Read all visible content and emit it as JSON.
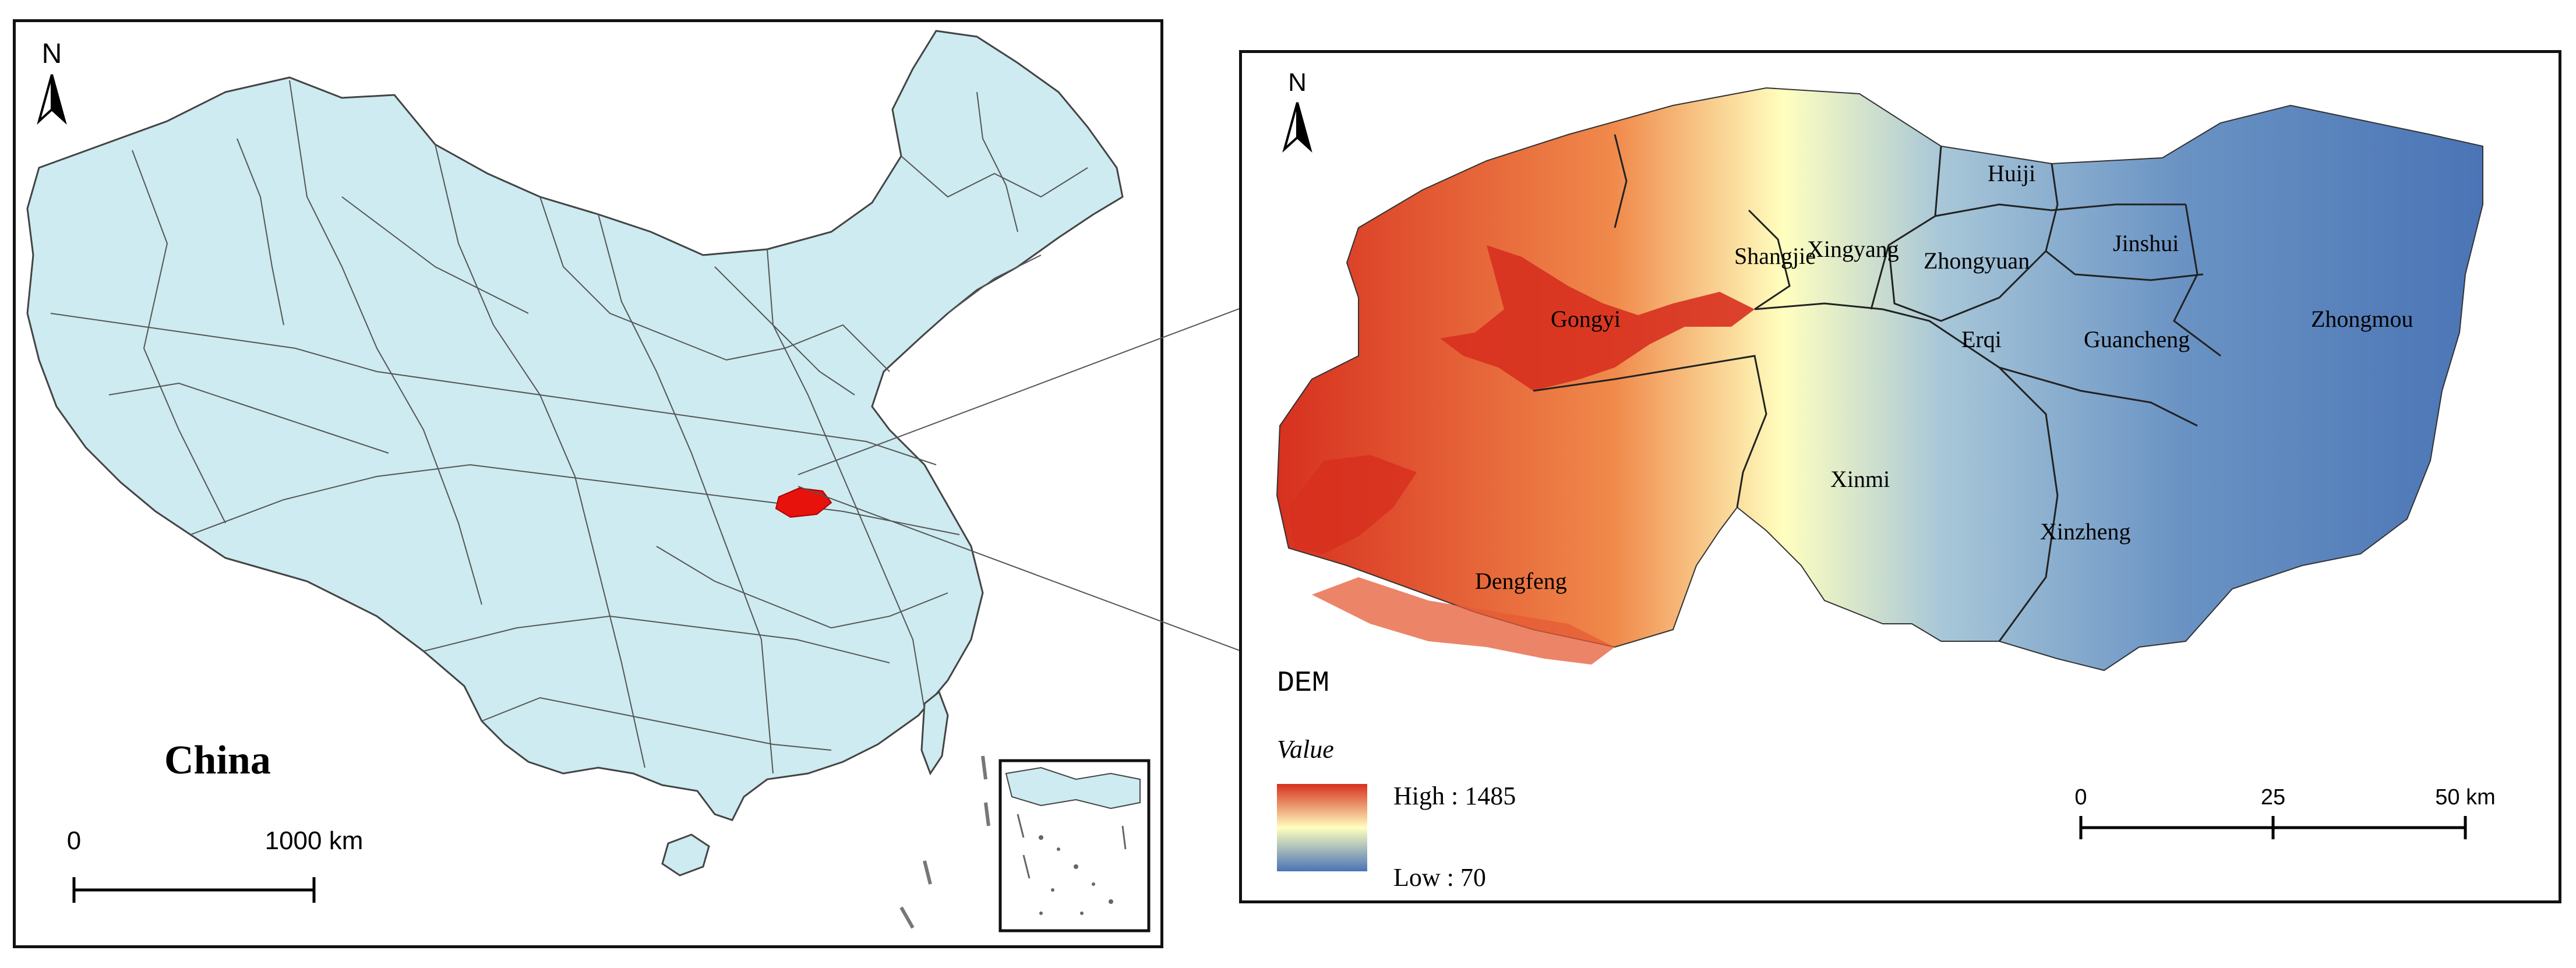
{
  "china_map": {
    "north_label": "N",
    "country_label": "China",
    "scale": {
      "start_label": "0",
      "end_label": "1000 km"
    }
  },
  "zhengzhou_map": {
    "north_label": "N",
    "dem_label": "DEM",
    "legend": {
      "title": "Value",
      "high_label": "High : 1485",
      "low_label": "Low : 70",
      "high_color": "#d7301f",
      "mid_color": "#ffffbf",
      "low_color": "#4a74b5"
    },
    "scale": {
      "ticks": [
        "0",
        "25",
        "50 km"
      ]
    },
    "districts": [
      "Huiji",
      "Jinshui",
      "Shangjie",
      "Xingyang",
      "Zhongyuan",
      "Gongyi",
      "Erqi",
      "Guancheng",
      "Zhongmou",
      "Xinmi",
      "Xinzheng",
      "Dengfeng"
    ]
  }
}
